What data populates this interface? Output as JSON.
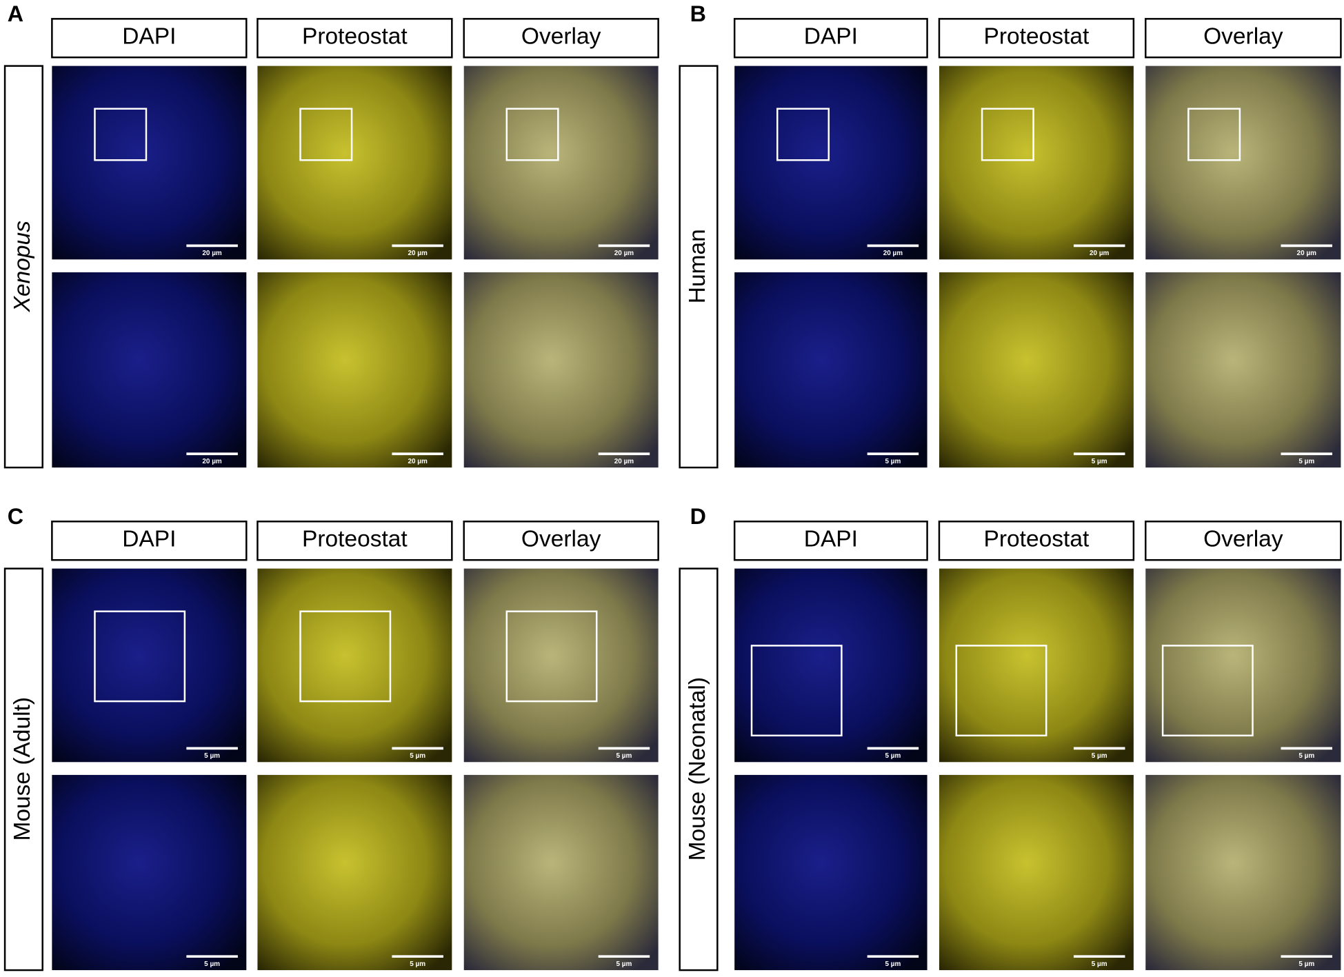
{
  "panels": [
    {
      "label": "A",
      "row_label": "Xenopus",
      "row_label_italic": true,
      "headers": [
        "DAPI",
        "Proteostat",
        "Overlay"
      ],
      "scale_bars": [
        [
          "20 µm",
          "20 µm",
          "20 µm"
        ],
        [
          "20 µm",
          "20 µm",
          "20 µm"
        ]
      ]
    },
    {
      "label": "B",
      "row_label": "Human",
      "row_label_italic": false,
      "headers": [
        "DAPI",
        "Proteostat",
        "Overlay"
      ],
      "scale_bars": [
        [
          "20 µm",
          "20 µm",
          "20 µm"
        ],
        [
          "5 µm",
          "5 µm",
          "5 µm"
        ]
      ]
    },
    {
      "label": "C",
      "row_label": "Mouse (Adult)",
      "row_label_italic": false,
      "headers": [
        "DAPI",
        "Proteostat",
        "Overlay"
      ],
      "scale_bars": [
        [
          "5 µm",
          "5 µm",
          "5 µm"
        ],
        [
          "5 µm",
          "5 µm",
          "5 µm"
        ]
      ]
    },
    {
      "label": "D",
      "row_label": "Mouse (Neonatal)",
      "row_label_italic": false,
      "headers": [
        "DAPI",
        "Proteostat",
        "Overlay"
      ],
      "scale_bars": [
        [
          "5 µm",
          "5 µm",
          "5 µm"
        ],
        [
          "5 µm",
          "5 µm",
          "5 µm"
        ]
      ]
    }
  ]
}
